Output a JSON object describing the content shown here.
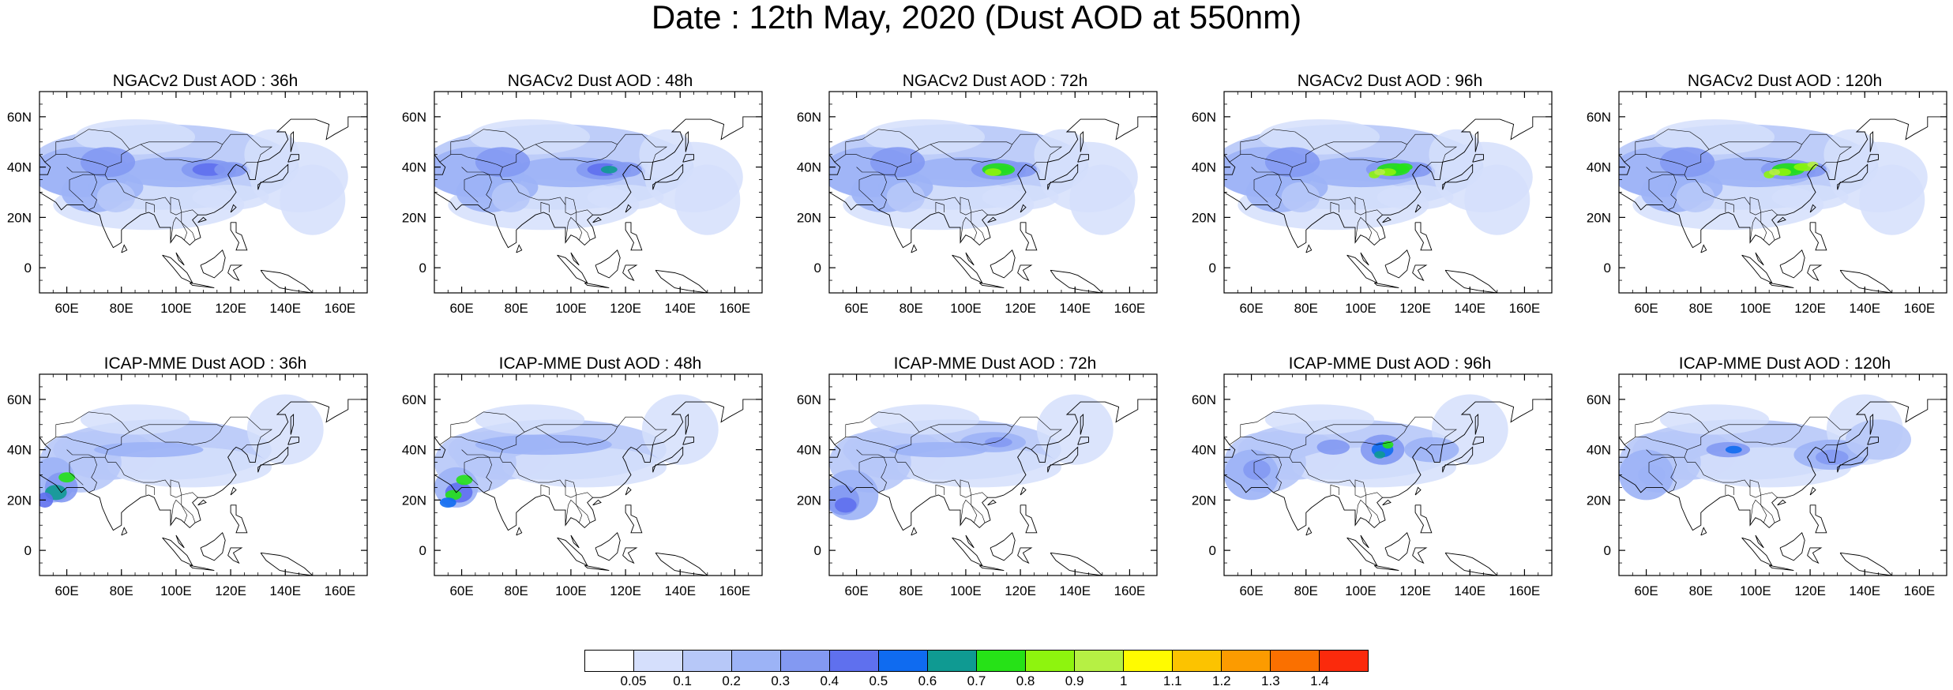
{
  "title": "Date : 12th May, 2020 (Dust AOD at 550nm)",
  "axes": {
    "lon_ticks": [
      "60E",
      "80E",
      "100E",
      "120E",
      "140E",
      "160E"
    ],
    "lat_ticks": [
      "60N",
      "40N",
      "20N",
      "0"
    ]
  },
  "panels": [
    {
      "title": "NGACv2 Dust AOD : 36h",
      "model": "NGACv2",
      "lead": 36
    },
    {
      "title": "NGACv2 Dust AOD : 48h",
      "model": "NGACv2",
      "lead": 48
    },
    {
      "title": "NGACv2 Dust AOD : 72h",
      "model": "NGACv2",
      "lead": 72
    },
    {
      "title": "NGACv2 Dust AOD : 96h",
      "model": "NGACv2",
      "lead": 96
    },
    {
      "title": "NGACv2 Dust AOD : 120h",
      "model": "NGACv2",
      "lead": 120
    },
    {
      "title": "ICAP-MME Dust AOD : 36h",
      "model": "ICAP-MME",
      "lead": 36
    },
    {
      "title": "ICAP-MME Dust AOD : 48h",
      "model": "ICAP-MME",
      "lead": 48
    },
    {
      "title": "ICAP-MME Dust AOD : 72h",
      "model": "ICAP-MME",
      "lead": 72
    },
    {
      "title": "ICAP-MME Dust AOD : 96h",
      "model": "ICAP-MME",
      "lead": 96
    },
    {
      "title": "ICAP-MME Dust AOD : 120h",
      "model": "ICAP-MME",
      "lead": 120
    }
  ],
  "colorbar": {
    "labels": [
      "0.05",
      "0.1",
      "0.2",
      "0.3",
      "0.4",
      "0.5",
      "0.6",
      "0.7",
      "0.8",
      "0.9",
      "1",
      "1.1",
      "1.2",
      "1.3",
      "1.4"
    ],
    "colors": [
      "#ffffff",
      "#d5dffc",
      "#b7c8f8",
      "#9cb3f6",
      "#8399f2",
      "#5f70ee",
      "#0f6bf0",
      "#0f9a92",
      "#26e217",
      "#8ef40e",
      "#b6f044",
      "#fffb00",
      "#fcc300",
      "#fc9b00",
      "#fa7000",
      "#fb2a0c"
    ]
  },
  "map_extent": {
    "lon": [
      50,
      170
    ],
    "lat": [
      -10,
      70
    ]
  }
}
